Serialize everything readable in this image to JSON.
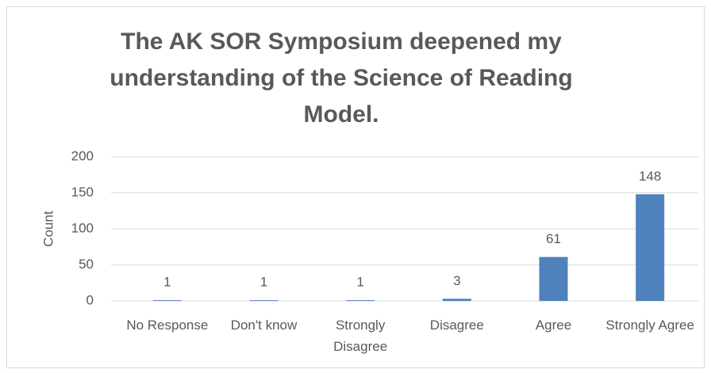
{
  "chart_data": {
    "type": "bar",
    "title": "The AK SOR Symposium deepened my understanding of the Science of Reading Model.",
    "y_label": "Count",
    "categories": [
      "No Response",
      "Don't know",
      "Strongly Disagree",
      "Disagree",
      "Agree",
      "Strongly Agree"
    ],
    "values": [
      1,
      1,
      1,
      3,
      61,
      148
    ],
    "color": "#4f81bd",
    "ylim": [
      0,
      200
    ],
    "yticks": [
      0,
      50,
      100,
      150,
      200
    ],
    "grid": true
  }
}
